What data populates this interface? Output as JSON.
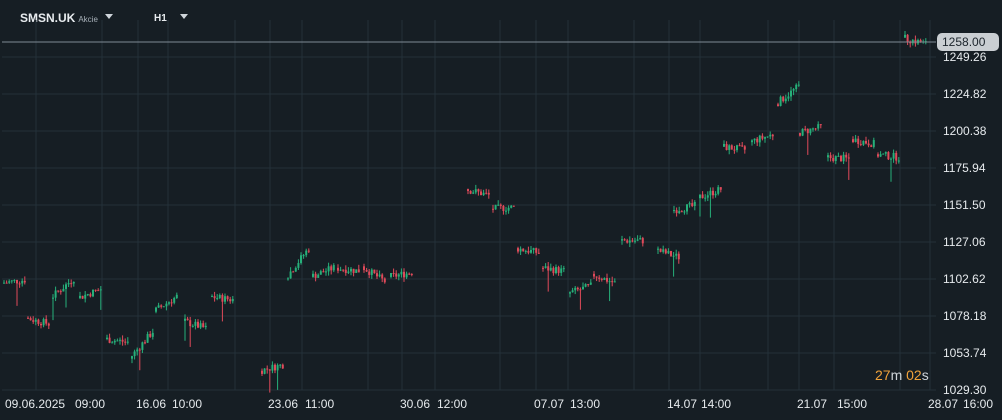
{
  "header": {
    "symbol": "SMSN.UK",
    "symbol_type": "Akcie",
    "timeframe": "H1"
  },
  "countdown": {
    "minutes": "27",
    "m": "m",
    "seconds": "02",
    "s": "s"
  },
  "colors": {
    "background": "#161e24",
    "grid": "#243039",
    "up": "#26b07a",
    "down": "#e04a5a",
    "price_line": "#7f8a94",
    "price_tag": "#c9ced2",
    "countdown": "#f0a23a"
  },
  "chart_data": {
    "type": "candlestick",
    "title": "",
    "xlabel": "",
    "ylabel": "",
    "ylim": [
      1029.3,
      1270
    ],
    "y_ticks": [
      1249.26,
      1224.82,
      1200.38,
      1175.94,
      1151.5,
      1127.06,
      1102.62,
      1078.18,
      1053.74,
      1029.3
    ],
    "y_tick_labels": [
      "1249.26",
      "1224.82",
      "1200.38",
      "1175.94",
      "1151.50",
      "1127.06",
      "1102.62",
      "1078.18",
      "1053.74",
      "1029.30"
    ],
    "x_tick_labels": [
      "09.06.2025",
      "09:00",
      "16.06",
      "10:00",
      "23.06",
      "11:00",
      "30.06",
      "12:00",
      "07.07",
      "13:00",
      "14.07",
      "14:00",
      "21.07",
      "15:00",
      "28.07",
      "16:00"
    ],
    "current_price": 1258.0,
    "current_price_label": "1258.00",
    "grid": true,
    "session_anchors": [
      {
        "day": 1,
        "open": 1100,
        "close": 1102
      },
      {
        "day": 2,
        "open": 1077,
        "close": 1073
      },
      {
        "day": 3,
        "open": 1090,
        "close": 1103
      },
      {
        "day": 4,
        "open": 1090,
        "close": 1096
      },
      {
        "day": 5,
        "open": 1063,
        "close": 1061
      },
      {
        "day": 6,
        "open": 1050,
        "close": 1068
      },
      {
        "day": 7,
        "open": 1081,
        "close": 1091
      },
      {
        "day": 8,
        "open": 1075,
        "close": 1070
      },
      {
        "day": 9,
        "open": 1091,
        "close": 1089
      },
      {
        "day": 10,
        "open": 1042,
        "close": 1046
      },
      {
        "day": 11,
        "open": 1103,
        "close": 1123
      },
      {
        "day": 12,
        "open": 1104,
        "close": 1110
      },
      {
        "day": 13,
        "open": 1110,
        "close": 1108
      },
      {
        "day": 14,
        "open": 1111,
        "close": 1101
      },
      {
        "day": 15,
        "open": 1104,
        "close": 1107
      },
      {
        "day": 16,
        "open": 1162,
        "close": 1158
      },
      {
        "day": 17,
        "open": 1149,
        "close": 1150
      },
      {
        "day": 18,
        "open": 1123,
        "close": 1120
      },
      {
        "day": 19,
        "open": 1110,
        "close": 1108
      },
      {
        "day": 20,
        "open": 1093,
        "close": 1098
      },
      {
        "day": 21,
        "open": 1106,
        "close": 1100
      },
      {
        "day": 22,
        "open": 1128,
        "close": 1128
      },
      {
        "day": 23,
        "open": 1122,
        "close": 1117
      },
      {
        "day": 24,
        "open": 1148,
        "close": 1151
      },
      {
        "day": 25,
        "open": 1156,
        "close": 1162
      },
      {
        "day": 26,
        "open": 1190,
        "close": 1188
      },
      {
        "day": 27,
        "open": 1193,
        "close": 1198
      },
      {
        "day": 28,
        "open": 1218,
        "close": 1230
      },
      {
        "day": 29,
        "open": 1199,
        "close": 1203
      },
      {
        "day": 30,
        "open": 1183,
        "close": 1182
      },
      {
        "day": 31,
        "open": 1195,
        "close": 1192
      },
      {
        "day": 32,
        "open": 1185,
        "close": 1183
      },
      {
        "day": 33,
        "open": 1262,
        "close": 1258
      }
    ]
  }
}
